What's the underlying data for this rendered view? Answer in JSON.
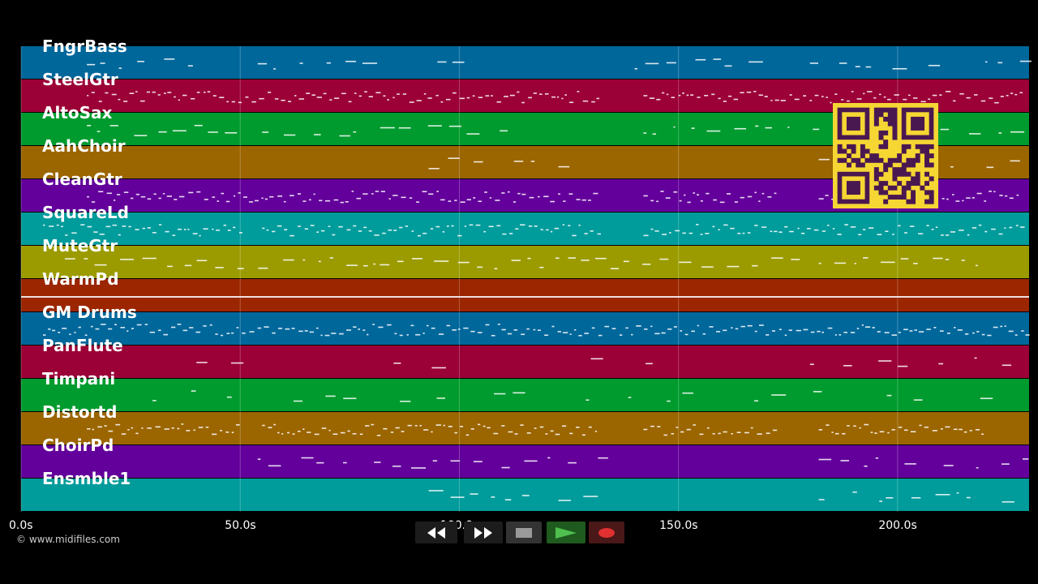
{
  "tracks": [
    {
      "label": "FngrBass",
      "color": "#00679b"
    },
    {
      "label": "SteelGtr",
      "color": "#9b0036"
    },
    {
      "label": "AltoSax",
      "color": "#009b2e"
    },
    {
      "label": "AahChoir",
      "color": "#9b6500"
    },
    {
      "label": "CleanGtr",
      "color": "#63009b"
    },
    {
      "label": "SquareLd",
      "color": "#009b9b"
    },
    {
      "label": "MuteGtr",
      "color": "#9b9b00"
    },
    {
      "label": "WarmPd",
      "color": "#9b2600"
    },
    {
      "label": "GM Drums",
      "color": "#00679b"
    },
    {
      "label": "PanFlute",
      "color": "#9b0036"
    },
    {
      "label": "Timpani",
      "color": "#009b2e"
    },
    {
      "label": "Distortd",
      "color": "#9b6500"
    },
    {
      "label": "ChoirPd",
      "color": "#63009b"
    },
    {
      "label": "Ensmble1",
      "color": "#009b9b"
    }
  ],
  "timeline": {
    "ticks": [
      "0.0s",
      "50.0s",
      "100.0s",
      "150.0s",
      "200.0s"
    ],
    "tick_seconds": [
      0,
      50,
      100,
      150,
      200
    ],
    "max_seconds": 230
  },
  "copyright": "© www.midifiles.com",
  "transport": {
    "rewind_icon": "rewind-icon",
    "forward_icon": "fast-forward-icon",
    "stop_icon": "stop-icon",
    "play_icon": "play-icon",
    "record_icon": "record-icon",
    "play_color": "#2e9b2e",
    "record_color": "#e03030"
  },
  "qr": {
    "color": "#f5d633",
    "dark": "#4a1850"
  }
}
